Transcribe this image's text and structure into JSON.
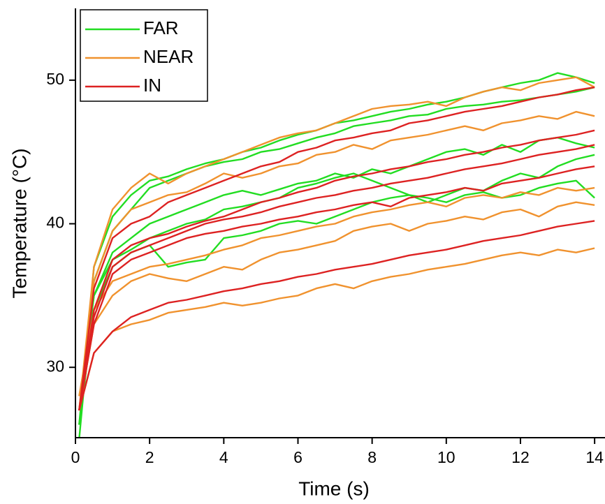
{
  "chart_data": {
    "type": "line",
    "x_label": "Time (s)",
    "y_label": "Temperature (°C)",
    "xlim": [
      0,
      14.28
    ],
    "ylim": [
      25.1,
      55
    ],
    "xticks": [
      0,
      2,
      4,
      6,
      8,
      10,
      12,
      14
    ],
    "yticks": [
      30,
      40,
      50
    ],
    "x": [
      0.1,
      0.5,
      1,
      1.5,
      2,
      2.5,
      3,
      3.5,
      4,
      4.5,
      5,
      5.5,
      6,
      6.5,
      7,
      7.5,
      8,
      8.5,
      9,
      9.5,
      10,
      10.5,
      11,
      11.5,
      12,
      12.5,
      13,
      13.5,
      14
    ],
    "legend": "upper left",
    "series": [
      {
        "name": "FAR",
        "color": "#22dd22",
        "runs": [
          [
            26,
            37,
            40.5,
            42,
            43,
            43.3,
            43.8,
            44.2,
            44.5,
            45,
            45.3,
            45.8,
            46.2,
            46.5,
            47,
            47.2,
            47.5,
            47.8,
            48,
            48.3,
            48.5,
            48.8,
            49.2,
            49.5,
            49.8,
            50,
            50.5,
            50.2,
            49.8
          ],
          [
            25,
            36,
            39.5,
            41,
            42.5,
            43,
            43.5,
            44,
            44.3,
            44.5,
            45,
            45.2,
            45.6,
            46,
            46.3,
            46.8,
            47,
            47.2,
            47.5,
            47.6,
            48,
            48.2,
            48.3,
            48.5,
            48.6,
            48.8,
            49,
            49.2,
            49.5
          ],
          [
            27,
            35,
            38,
            39,
            40,
            40.5,
            41,
            41.5,
            42,
            42.3,
            42,
            42.4,
            42.8,
            43,
            43.5,
            43.2,
            43.8,
            43.5,
            44,
            44.5,
            45,
            45.2,
            44.8,
            45.5,
            45,
            45.8,
            46,
            45.6,
            45.3
          ],
          [
            26,
            34,
            37,
            38,
            38.5,
            37,
            37.3,
            37.5,
            39,
            39.2,
            39.5,
            40,
            40.2,
            40,
            40.5,
            41,
            41.5,
            41.8,
            42,
            41.5,
            42,
            42.5,
            42.3,
            43,
            43.5,
            43.2,
            44,
            44.5,
            44.8
          ],
          [
            27,
            35,
            37.5,
            38.2,
            39,
            39.5,
            40,
            40.3,
            41,
            41.2,
            41.5,
            41.8,
            42.5,
            42.8,
            43.2,
            43.5,
            43,
            42.5,
            42,
            41.8,
            41.5,
            42,
            42.2,
            41.8,
            42,
            42.5,
            42.8,
            43,
            41.8
          ]
        ]
      },
      {
        "name": "NEAR",
        "color": "#f0922e",
        "runs": [
          [
            27,
            37,
            41,
            42.5,
            43.5,
            42.8,
            43.5,
            44,
            44.5,
            45,
            45.5,
            46,
            46.3,
            46.5,
            47,
            47.5,
            48,
            48.2,
            48.3,
            48.5,
            48.2,
            48.8,
            49.2,
            49.5,
            49.3,
            49.8,
            50,
            50.2,
            49.5
          ],
          [
            27,
            36,
            39.5,
            41,
            41.5,
            42,
            42.2,
            42.8,
            43.5,
            43.2,
            43.5,
            44,
            44.2,
            44.8,
            45,
            45.5,
            45.2,
            45.8,
            46,
            46.2,
            46.5,
            46.8,
            46.5,
            47,
            47.2,
            47.5,
            47.3,
            47.8,
            47.5
          ],
          [
            28,
            34,
            36,
            36.5,
            37,
            37.2,
            37.5,
            37.8,
            38.2,
            38.5,
            39,
            39.2,
            39.5,
            39.8,
            40,
            40.5,
            40.8,
            41,
            41.3,
            41.5,
            41.2,
            41.8,
            42,
            41.8,
            42.2,
            42,
            42.5,
            42.3,
            42.5
          ],
          [
            27,
            33,
            35,
            36,
            36.5,
            36.2,
            36,
            36.5,
            37,
            36.8,
            37.5,
            38,
            38.2,
            38.5,
            38.8,
            39.5,
            39.8,
            40,
            39.5,
            40,
            40.2,
            40.5,
            40.3,
            40.8,
            41,
            40.5,
            41.2,
            41.5,
            41.3
          ],
          [
            27,
            31,
            32.5,
            33,
            33.3,
            33.8,
            34,
            34.2,
            34.5,
            34.3,
            34.5,
            34.8,
            35,
            35.5,
            35.8,
            35.5,
            36,
            36.3,
            36.5,
            36.8,
            37,
            37.2,
            37.5,
            37.8,
            38,
            37.8,
            38.2,
            38,
            38.3
          ]
        ]
      },
      {
        "name": "IN",
        "color": "#dd2222",
        "runs": [
          [
            27,
            35.5,
            39,
            40,
            40.5,
            41.5,
            42,
            42.5,
            43,
            43.5,
            44,
            44.3,
            45,
            45.3,
            45.8,
            46,
            46.3,
            46.5,
            47,
            47.2,
            47.5,
            47.8,
            48,
            48.2,
            48.5,
            48.8,
            49,
            49.3,
            49.5
          ],
          [
            27,
            34,
            37.5,
            38.5,
            39,
            39.3,
            39.8,
            40.2,
            40.5,
            41,
            41.5,
            41.8,
            42.2,
            42.5,
            43,
            43.3,
            43.5,
            43.8,
            44,
            44.3,
            44.5,
            44.8,
            45,
            45.3,
            45.5,
            45.8,
            46,
            46.2,
            46.5
          ],
          [
            27,
            33.5,
            37,
            38,
            38.5,
            39,
            39.5,
            40,
            40.3,
            40.5,
            40.8,
            41.2,
            41.5,
            41.8,
            42,
            42.3,
            42.5,
            42.8,
            43,
            43.2,
            43.5,
            43.8,
            44,
            44.2,
            44.5,
            44.8,
            45,
            45.2,
            45.5
          ],
          [
            27,
            33,
            36.5,
            37.5,
            38,
            38.5,
            39,
            39.3,
            39.5,
            39.8,
            40,
            40.3,
            40.5,
            40.8,
            41,
            41.3,
            41.5,
            41.2,
            41.8,
            42,
            42.2,
            42.5,
            42.3,
            42.8,
            43,
            43.2,
            43.5,
            43.8,
            44
          ],
          [
            27,
            31,
            32.5,
            33.5,
            34,
            34.5,
            34.7,
            35,
            35.3,
            35.5,
            35.8,
            36,
            36.3,
            36.5,
            36.8,
            37,
            37.2,
            37.5,
            37.8,
            38,
            38.2,
            38.5,
            38.8,
            39,
            39.2,
            39.5,
            39.8,
            40,
            40.2
          ]
        ]
      }
    ]
  }
}
